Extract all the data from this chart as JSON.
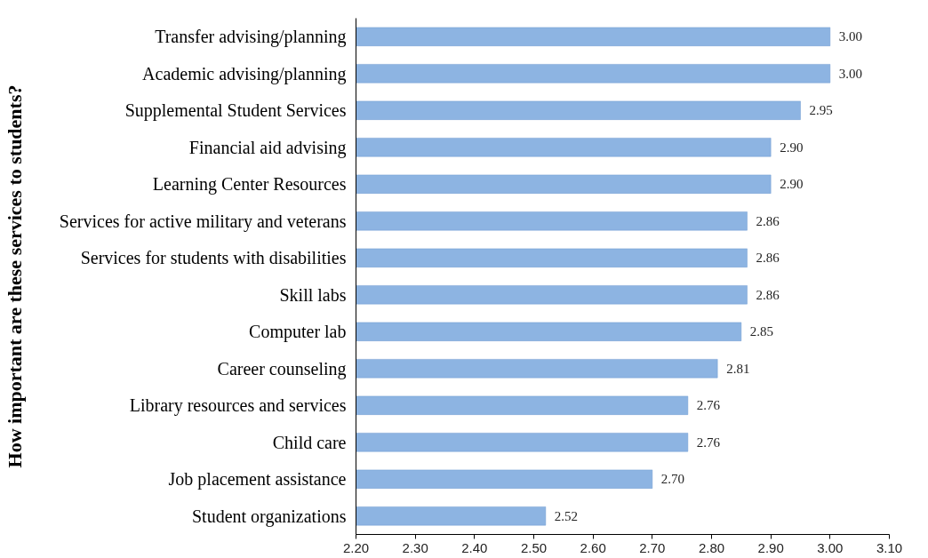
{
  "chart_data": {
    "type": "bar",
    "orientation": "horizontal",
    "ylabel": "How important are these services to students?",
    "categories": [
      "Transfer advising/planning",
      "Academic advising/planning",
      "Supplemental Student Services",
      "Financial aid advising",
      "Learning Center Resources",
      "Services for active military and veterans",
      "Services for students with disabilities",
      "Skill labs",
      "Computer lab",
      "Career counseling",
      "Library resources and services",
      "Child care",
      "Job placement assistance",
      "Student organizations"
    ],
    "values": [
      3.0,
      3.0,
      2.95,
      2.9,
      2.9,
      2.86,
      2.86,
      2.86,
      2.85,
      2.81,
      2.76,
      2.76,
      2.7,
      2.52
    ],
    "value_labels": [
      "3.00",
      "3.00",
      "2.95",
      "2.90",
      "2.90",
      "2.86",
      "2.86",
      "2.86",
      "2.85",
      "2.81",
      "2.76",
      "2.76",
      "2.70",
      "2.52"
    ],
    "color": "#8db4e2",
    "xlim": [
      2.2,
      3.1
    ],
    "xticks": [
      {
        "value": 2.2,
        "label": "2.20"
      },
      {
        "value": 2.3,
        "label": "2.30"
      },
      {
        "value": 2.4,
        "label": "2.40"
      },
      {
        "value": 2.5,
        "label": "2.50"
      },
      {
        "value": 2.6,
        "label": "2.60"
      },
      {
        "value": 2.7,
        "label": "2.70"
      },
      {
        "value": 2.8,
        "label": "2.80"
      },
      {
        "value": 2.9,
        "label": "2.90"
      },
      {
        "value": 3.0,
        "label": "3.00"
      },
      {
        "value": 3.1,
        "label": "3.10"
      }
    ],
    "grid": false
  }
}
